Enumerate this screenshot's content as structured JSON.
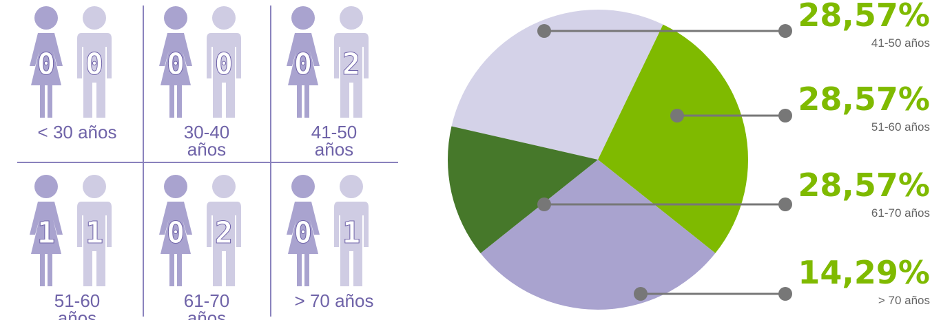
{
  "grid": {
    "cells": [
      {
        "label": [
          "< 30 años"
        ],
        "women": 0,
        "men": 0
      },
      {
        "label": [
          "30-40",
          "años"
        ],
        "women": 0,
        "men": 0
      },
      {
        "label": [
          "41-50",
          "años"
        ],
        "women": 0,
        "men": 2
      },
      {
        "label": [
          "51-60",
          "años"
        ],
        "women": 1,
        "men": 1
      },
      {
        "label": [
          "61-70",
          "años"
        ],
        "women": 0,
        "men": 2
      },
      {
        "label": [
          "> 70 años"
        ],
        "women": 0,
        "men": 1
      }
    ]
  },
  "chart_data": {
    "type": "pie",
    "categories": [
      "41-50 años",
      "51-60 años",
      "61-70 años",
      "> 70 años"
    ],
    "values": [
      28.57,
      28.57,
      28.57,
      14.29
    ],
    "value_labels": [
      "28,57%",
      "28,57%",
      "28,57%",
      "14,29%"
    ],
    "colors": [
      "#d4d2e8",
      "#7fba00",
      "#a9a3cf",
      "#46782a"
    ]
  }
}
